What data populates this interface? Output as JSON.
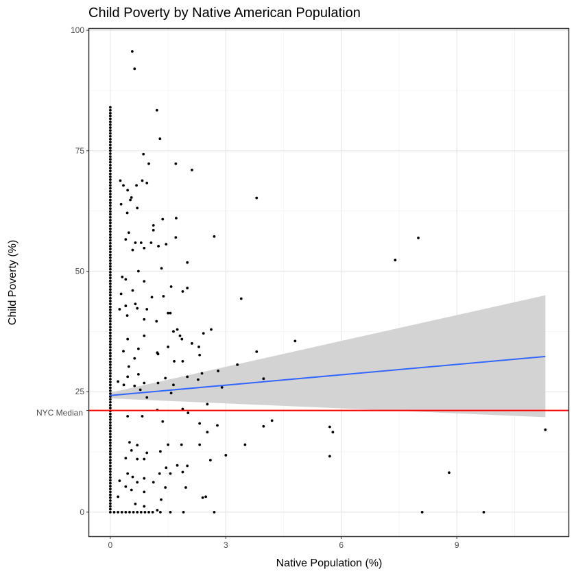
{
  "chart_data": {
    "type": "scatter",
    "title": "Child Poverty by Native American Population",
    "xlabel": "Native Population (%)",
    "ylabel": "Child Poverty (%)",
    "xlim": [
      -0.55,
      11.9
    ],
    "ylim": [
      -5,
      100.3
    ],
    "x_ticks": [
      0,
      3,
      6,
      9
    ],
    "y_ticks": [
      0,
      25,
      50,
      75,
      100
    ],
    "grid": true,
    "reference_line": {
      "label": "NYC Median",
      "y": 21.1,
      "color": "#ff0000"
    },
    "trend_line": {
      "method": "linear",
      "color": "#3366ff",
      "band_color": "#d3d3d3",
      "x": [
        0,
        11.3
      ],
      "y": [
        24.2,
        32.3
      ],
      "lower": [
        23.6,
        19.7
      ],
      "upper": [
        24.8,
        45.0
      ]
    },
    "points": [
      [
        0.57,
        95.6
      ],
      [
        0.63,
        92.0
      ],
      [
        1.21,
        83.4
      ],
      [
        1.29,
        77.5
      ],
      [
        0.86,
        74.3
      ],
      [
        1.0,
        72.3
      ],
      [
        1.7,
        72.3
      ],
      [
        2.12,
        71.0
      ],
      [
        0.95,
        68.3
      ],
      [
        0.83,
        68.8
      ],
      [
        0.26,
        68.8
      ],
      [
        0.34,
        67.8
      ],
      [
        0.45,
        66.8
      ],
      [
        0.68,
        67.8
      ],
      [
        0.55,
        65.3
      ],
      [
        0.52,
        64.8
      ],
      [
        0.28,
        63.9
      ],
      [
        0.7,
        63.1
      ],
      [
        0.44,
        62.1
      ],
      [
        3.8,
        65.2
      ],
      [
        1.36,
        60.8
      ],
      [
        1.71,
        61.0
      ],
      [
        1.12,
        59.5
      ],
      [
        1.12,
        58.5
      ],
      [
        1.7,
        57.0
      ],
      [
        2.7,
        57.2
      ],
      [
        0.48,
        58.0
      ],
      [
        0.4,
        56.6
      ],
      [
        0.65,
        55.9
      ],
      [
        0.8,
        55.9
      ],
      [
        1.06,
        55.9
      ],
      [
        1.25,
        55.2
      ],
      [
        1.45,
        55.6
      ],
      [
        0.58,
        54.4
      ],
      [
        0.88,
        54.8
      ],
      [
        8.0,
        56.9
      ],
      [
        7.4,
        52.3
      ],
      [
        2.0,
        51.8
      ],
      [
        1.33,
        50.6
      ],
      [
        0.73,
        50.0
      ],
      [
        0.31,
        48.8
      ],
      [
        0.4,
        48.3
      ],
      [
        0.88,
        47.9
      ],
      [
        1.58,
        46.8
      ],
      [
        2.0,
        46.5
      ],
      [
        1.88,
        45.8
      ],
      [
        0.58,
        46.0
      ],
      [
        0.28,
        45.3
      ],
      [
        3.4,
        44.3
      ],
      [
        1.38,
        44.8
      ],
      [
        1.08,
        44.6
      ],
      [
        0.65,
        43.2
      ],
      [
        0.7,
        42.3
      ],
      [
        0.4,
        42.8
      ],
      [
        0.24,
        42.1
      ],
      [
        0.95,
        42.1
      ],
      [
        1.5,
        41.3
      ],
      [
        1.56,
        41.3
      ],
      [
        0.44,
        40.8
      ],
      [
        0.88,
        40.0
      ],
      [
        1.2,
        39.6
      ],
      [
        1.74,
        37.9
      ],
      [
        1.64,
        37.5
      ],
      [
        2.62,
        37.9
      ],
      [
        2.42,
        37.1
      ],
      [
        0.88,
        36.6
      ],
      [
        0.45,
        35.9
      ],
      [
        1.81,
        36.6
      ],
      [
        1.86,
        35.9
      ],
      [
        4.8,
        35.5
      ],
      [
        2.12,
        35.0
      ],
      [
        1.5,
        34.3
      ],
      [
        2.3,
        34.3
      ],
      [
        0.73,
        33.9
      ],
      [
        0.34,
        33.4
      ],
      [
        3.8,
        33.3
      ],
      [
        1.22,
        33.1
      ],
      [
        1.24,
        32.8
      ],
      [
        2.32,
        32.6
      ],
      [
        0.63,
        31.9
      ],
      [
        1.66,
        31.3
      ],
      [
        1.88,
        31.3
      ],
      [
        3.3,
        30.6
      ],
      [
        0.48,
        30.2
      ],
      [
        2.8,
        29.3
      ],
      [
        2.38,
        28.8
      ],
      [
        0.73,
        28.6
      ],
      [
        0.45,
        28.1
      ],
      [
        1.43,
        27.8
      ],
      [
        2.0,
        28.1
      ],
      [
        3.98,
        27.7
      ],
      [
        0.2,
        27.1
      ],
      [
        2.28,
        27.5
      ],
      [
        0.88,
        26.8
      ],
      [
        1.24,
        26.8
      ],
      [
        1.64,
        26.4
      ],
      [
        0.35,
        26.4
      ],
      [
        0.63,
        26.2
      ],
      [
        2.9,
        25.9
      ],
      [
        0.78,
        25.4
      ],
      [
        1.58,
        24.7
      ],
      [
        0.95,
        23.8
      ],
      [
        2.52,
        22.4
      ],
      [
        1.88,
        21.4
      ],
      [
        1.22,
        21.2
      ],
      [
        2.02,
        20.6
      ],
      [
        0.45,
        19.9
      ],
      [
        0.83,
        19.9
      ],
      [
        4.2,
        19.0
      ],
      [
        1.36,
        18.8
      ],
      [
        2.32,
        18.4
      ],
      [
        2.78,
        18.0
      ],
      [
        3.98,
        17.8
      ],
      [
        5.7,
        17.7
      ],
      [
        5.78,
        16.6
      ],
      [
        2.52,
        16.6
      ],
      [
        3.5,
        14.0
      ],
      [
        0.5,
        14.5
      ],
      [
        1.5,
        14.0
      ],
      [
        1.85,
        14.0
      ],
      [
        2.32,
        14.0
      ],
      [
        0.7,
        13.9
      ],
      [
        0.55,
        12.8
      ],
      [
        0.95,
        12.3
      ],
      [
        1.3,
        12.6
      ],
      [
        3.0,
        11.8
      ],
      [
        5.7,
        11.6
      ],
      [
        0.4,
        11.2
      ],
      [
        0.7,
        11.0
      ],
      [
        0.88,
        11.0
      ],
      [
        1.74,
        9.7
      ],
      [
        2.0,
        9.6
      ],
      [
        1.88,
        8.3
      ],
      [
        1.45,
        9.2
      ],
      [
        2.6,
        10.8
      ],
      [
        8.8,
        8.2
      ],
      [
        0.45,
        8.0
      ],
      [
        1.28,
        8.0
      ],
      [
        1.56,
        8.0
      ],
      [
        0.58,
        7.3
      ],
      [
        0.88,
        7.0
      ],
      [
        0.24,
        6.5
      ],
      [
        1.12,
        6.2
      ],
      [
        0.7,
        6.2
      ],
      [
        0.4,
        5.3
      ],
      [
        1.43,
        5.1
      ],
      [
        1.96,
        5.1
      ],
      [
        0.55,
        4.6
      ],
      [
        0.88,
        4.2
      ],
      [
        0.2,
        3.2
      ],
      [
        2.48,
        3.2
      ],
      [
        2.4,
        3.0
      ],
      [
        1.32,
        2.6
      ],
      [
        0.65,
        1.7
      ],
      [
        0.88,
        1.2
      ],
      [
        1.22,
        0.4
      ],
      [
        1.56,
        0
      ],
      [
        1.9,
        0
      ],
      [
        2.7,
        0
      ],
      [
        8.1,
        0
      ],
      [
        9.7,
        0
      ],
      [
        11.3,
        17.1
      ],
      [
        0.1,
        0
      ],
      [
        0.2,
        0
      ],
      [
        0.3,
        0
      ],
      [
        0.4,
        0
      ],
      [
        0.5,
        0
      ],
      [
        0.6,
        0
      ],
      [
        0.7,
        0
      ],
      [
        0.8,
        0
      ],
      [
        0.9,
        0
      ],
      [
        1.0,
        0
      ],
      [
        1.1,
        0
      ],
      [
        1.3,
        0
      ]
    ]
  }
}
